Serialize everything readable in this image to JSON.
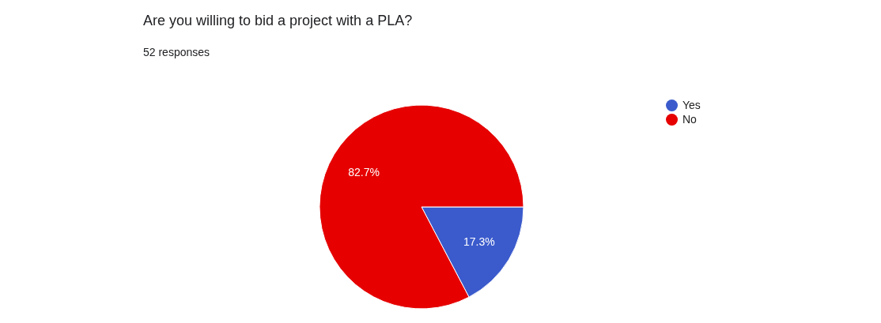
{
  "chart_data": {
    "type": "pie",
    "title": "Are you willing to bid a project with a PLA?",
    "subtitle": "52 responses",
    "categories": [
      "Yes",
      "No"
    ],
    "values": [
      17.3,
      82.7
    ],
    "colors": [
      "#3b5bcc",
      "#e60000"
    ],
    "value_labels": [
      "17.3%",
      "82.7%"
    ],
    "legend": "top right"
  }
}
